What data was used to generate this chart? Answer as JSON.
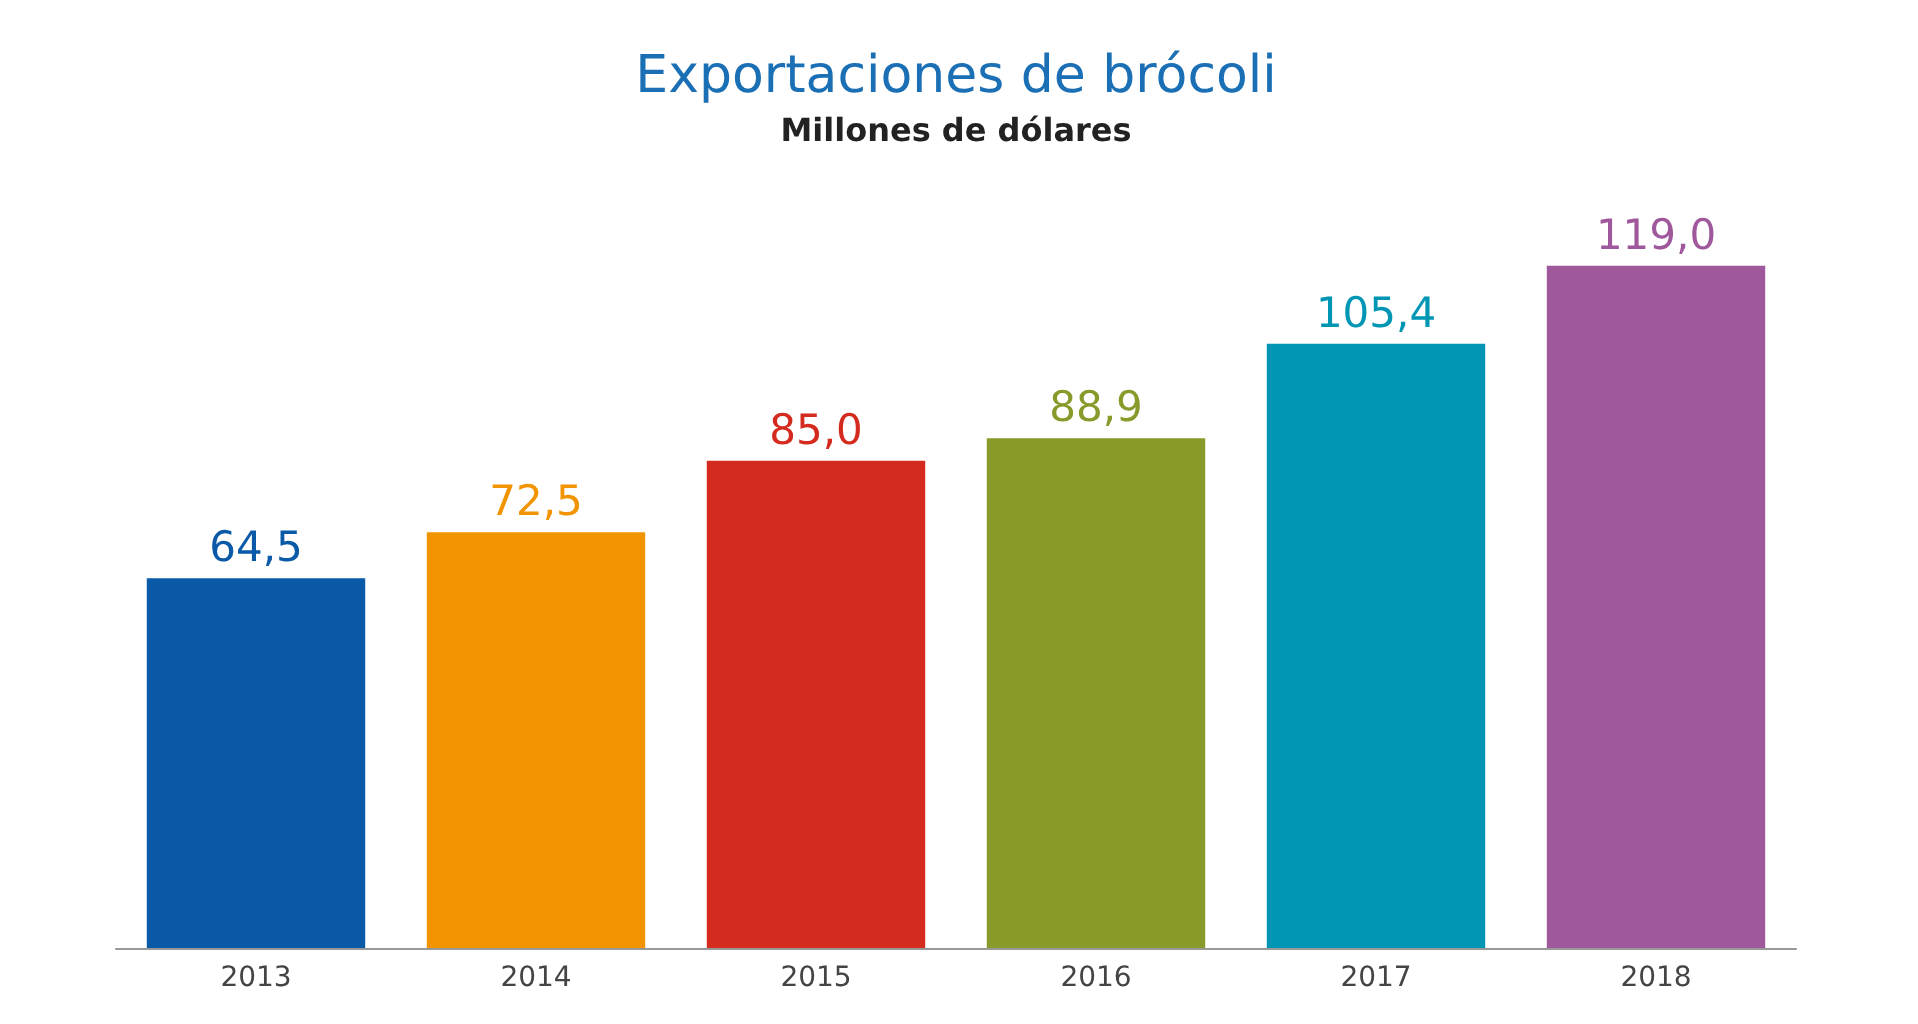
{
  "chart_data": {
    "type": "bar",
    "title": "Exportaciones de brócoli",
    "subtitle": "Millones de dólares",
    "categories": [
      "2013",
      "2014",
      "2015",
      "2016",
      "2017",
      "2018"
    ],
    "values": [
      64.5,
      72.5,
      85.0,
      88.9,
      105.4,
      119.0
    ],
    "value_labels": [
      "64,5",
      "72,5",
      "85,0",
      "88,9",
      "105,4",
      "119,0"
    ],
    "colors": [
      "#0a5aa8",
      "#f29400",
      "#d52b1e",
      "#8a9a2a",
      "#0096b4",
      "#a0589c"
    ]
  }
}
